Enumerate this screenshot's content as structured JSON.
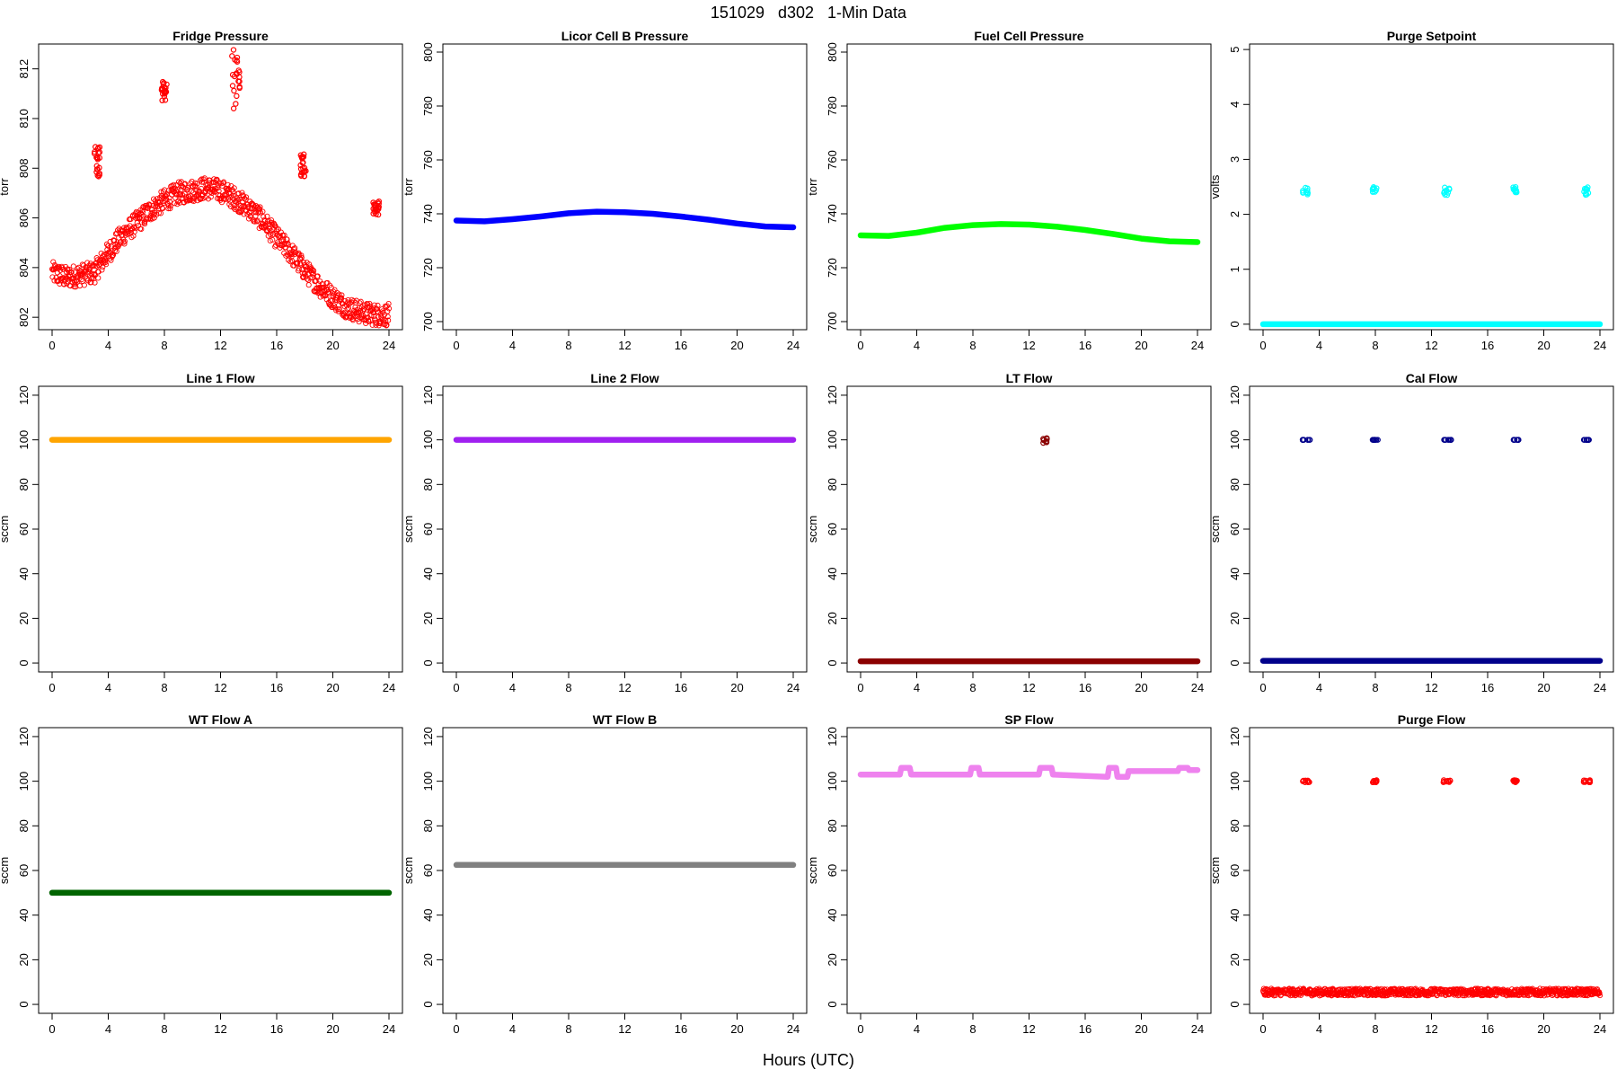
{
  "figure": {
    "title": "151029   d302   1-Min Data",
    "xlabel": "Hours (UTC)"
  },
  "chart_data": [
    {
      "type": "scatter",
      "title": "Fridge Pressure",
      "ylabel": "torr",
      "color": "#ff0000",
      "xlim": [
        0,
        24
      ],
      "ylim": [
        801.5,
        813
      ],
      "xticks": [
        0,
        4,
        8,
        12,
        16,
        20,
        24
      ],
      "yticks": [
        802,
        804,
        806,
        808,
        810,
        812
      ],
      "series": [
        {
          "x": [
            0,
            1,
            2,
            3,
            4,
            5,
            6,
            7,
            8,
            9,
            10,
            11,
            12,
            13,
            14,
            15,
            16,
            17,
            18,
            19,
            20,
            21,
            22,
            23,
            24
          ],
          "y": [
            803.8,
            803.6,
            803.7,
            803.8,
            804.6,
            805.3,
            805.8,
            806.3,
            806.7,
            807.0,
            807.1,
            807.2,
            807.1,
            806.8,
            806.4,
            805.9,
            805.2,
            804.6,
            803.9,
            803.3,
            802.8,
            802.4,
            802.2,
            802.1,
            802.1
          ]
        }
      ],
      "excursions": [
        {
          "x": [
            3.0,
            3.4
          ],
          "y": [
            807.6,
            808.9
          ]
        },
        {
          "x": [
            7.8,
            8.2
          ],
          "y": [
            810.7,
            811.5
          ]
        },
        {
          "x": [
            12.8,
            13.4
          ],
          "y": [
            810.4,
            812.9
          ]
        },
        {
          "x": [
            17.7,
            18.1
          ],
          "y": [
            807.6,
            808.6
          ]
        },
        {
          "x": [
            22.8,
            23.3
          ],
          "y": [
            806.1,
            806.7
          ]
        }
      ]
    },
    {
      "type": "line",
      "title": "Licor Cell B Pressure",
      "ylabel": "torr",
      "color": "#0000ff",
      "xlim": [
        0,
        24
      ],
      "ylim": [
        697,
        803
      ],
      "xticks": [
        0,
        4,
        8,
        12,
        16,
        20,
        24
      ],
      "yticks": [
        700,
        720,
        740,
        760,
        780,
        800
      ],
      "series": [
        {
          "x": [
            0,
            2,
            4,
            6,
            8,
            10,
            12,
            14,
            16,
            18,
            20,
            22,
            24
          ],
          "y": [
            737.5,
            737.2,
            738.0,
            739.0,
            740.2,
            740.8,
            740.6,
            740.0,
            739.0,
            737.8,
            736.4,
            735.3,
            735.0
          ]
        }
      ]
    },
    {
      "type": "line",
      "title": "Fuel Cell Pressure",
      "ylabel": "torr",
      "color": "#00ff00",
      "xlim": [
        0,
        24
      ],
      "ylim": [
        697,
        803
      ],
      "xticks": [
        0,
        4,
        8,
        12,
        16,
        20,
        24
      ],
      "yticks": [
        700,
        720,
        740,
        760,
        780,
        800
      ],
      "series": [
        {
          "x": [
            0,
            2,
            4,
            6,
            8,
            10,
            12,
            14,
            16,
            18,
            20,
            22,
            24
          ],
          "y": [
            732.0,
            731.8,
            733.0,
            734.8,
            735.8,
            736.2,
            736.0,
            735.2,
            734.0,
            732.5,
            730.8,
            729.8,
            729.5
          ]
        }
      ]
    },
    {
      "type": "scatter",
      "title": "Purge Setpoint",
      "ylabel": "volts",
      "color": "#00ffff",
      "xlim": [
        0,
        24
      ],
      "ylim": [
        -0.1,
        5.1
      ],
      "xticks": [
        0,
        4,
        8,
        12,
        16,
        20,
        24
      ],
      "yticks": [
        0,
        1,
        2,
        3,
        4,
        5
      ],
      "series": [
        {
          "x": [
            0,
            24
          ],
          "y": [
            0,
            0
          ]
        }
      ],
      "excursions": [
        {
          "x": [
            2.8,
            3.2
          ],
          "y": [
            2.35,
            2.5
          ]
        },
        {
          "x": [
            7.8,
            8.1
          ],
          "y": [
            2.4,
            2.5
          ]
        },
        {
          "x": [
            12.8,
            13.3
          ],
          "y": [
            2.35,
            2.5
          ]
        },
        {
          "x": [
            17.8,
            18.1
          ],
          "y": [
            2.4,
            2.5
          ]
        },
        {
          "x": [
            22.8,
            23.2
          ],
          "y": [
            2.35,
            2.5
          ]
        }
      ]
    },
    {
      "type": "line",
      "title": "Line 1 Flow",
      "ylabel": "sccm",
      "color": "#ffa500",
      "xlim": [
        0,
        24
      ],
      "ylim": [
        -4,
        124
      ],
      "xticks": [
        0,
        4,
        8,
        12,
        16,
        20,
        24
      ],
      "yticks": [
        0,
        20,
        40,
        60,
        80,
        100,
        120
      ],
      "series": [
        {
          "x": [
            0,
            24
          ],
          "y": [
            100,
            100
          ]
        }
      ]
    },
    {
      "type": "line",
      "title": "Line 2 Flow",
      "ylabel": "sccm",
      "color": "#a020f0",
      "xlim": [
        0,
        24
      ],
      "ylim": [
        -4,
        124
      ],
      "xticks": [
        0,
        4,
        8,
        12,
        16,
        20,
        24
      ],
      "yticks": [
        0,
        20,
        40,
        60,
        80,
        100,
        120
      ],
      "series": [
        {
          "x": [
            0,
            24
          ],
          "y": [
            100,
            100
          ]
        }
      ]
    },
    {
      "type": "scatter",
      "title": "LT Flow",
      "ylabel": "sccm",
      "color": "#8b0000",
      "xlim": [
        0,
        24
      ],
      "ylim": [
        -4,
        124
      ],
      "xticks": [
        0,
        4,
        8,
        12,
        16,
        20,
        24
      ],
      "yticks": [
        0,
        20,
        40,
        60,
        80,
        100,
        120
      ],
      "series": [
        {
          "x": [
            0,
            24
          ],
          "y": [
            0.8,
            0.8
          ]
        }
      ],
      "excursions": [
        {
          "x": [
            13.0,
            13.3
          ],
          "y": [
            98.5,
            101
          ]
        }
      ]
    },
    {
      "type": "scatter",
      "title": "Cal Flow",
      "ylabel": "sccm",
      "color": "#00008b",
      "xlim": [
        0,
        24
      ],
      "ylim": [
        -4,
        124
      ],
      "xticks": [
        0,
        4,
        8,
        12,
        16,
        20,
        24
      ],
      "yticks": [
        0,
        20,
        40,
        60,
        80,
        100,
        120
      ],
      "series": [
        {
          "x": [
            0,
            24
          ],
          "y": [
            1,
            1
          ]
        }
      ],
      "excursions": [
        {
          "x": [
            2.8,
            3.4
          ],
          "y": [
            100,
            100
          ]
        },
        {
          "x": [
            7.8,
            8.2
          ],
          "y": [
            100,
            100
          ]
        },
        {
          "x": [
            12.8,
            13.5
          ],
          "y": [
            100,
            100
          ]
        },
        {
          "x": [
            17.8,
            18.2
          ],
          "y": [
            100,
            100
          ]
        },
        {
          "x": [
            22.8,
            23.4
          ],
          "y": [
            100,
            100
          ]
        }
      ]
    },
    {
      "type": "line",
      "title": "WT Flow A",
      "ylabel": "sccm",
      "color": "#006400",
      "xlim": [
        0,
        24
      ],
      "ylim": [
        -4,
        124
      ],
      "xticks": [
        0,
        4,
        8,
        12,
        16,
        20,
        24
      ],
      "yticks": [
        0,
        20,
        40,
        60,
        80,
        100,
        120
      ],
      "series": [
        {
          "x": [
            0,
            24
          ],
          "y": [
            50,
            50
          ]
        }
      ]
    },
    {
      "type": "line",
      "title": "WT Flow B",
      "ylabel": "sccm",
      "color": "#808080",
      "xlim": [
        0,
        24
      ],
      "ylim": [
        -4,
        124
      ],
      "xticks": [
        0,
        4,
        8,
        12,
        16,
        20,
        24
      ],
      "yticks": [
        0,
        20,
        40,
        60,
        80,
        100,
        120
      ],
      "series": [
        {
          "x": [
            0,
            24
          ],
          "y": [
            62.5,
            62.5
          ]
        }
      ]
    },
    {
      "type": "line",
      "title": "SP Flow",
      "ylabel": "sccm",
      "color": "#ee82ee",
      "xlim": [
        0,
        24
      ],
      "ylim": [
        -4,
        124
      ],
      "xticks": [
        0,
        4,
        8,
        12,
        16,
        20,
        24
      ],
      "yticks": [
        0,
        20,
        40,
        60,
        80,
        100,
        120
      ],
      "series": [
        {
          "x": [
            0,
            2.8,
            2.9,
            3.5,
            3.6,
            7.8,
            7.9,
            8.4,
            8.5,
            12.7,
            12.8,
            13.6,
            13.7,
            17.6,
            17.7,
            18.2,
            18.3,
            19.0,
            19.1,
            22.6,
            22.7,
            23.3,
            23.4,
            24
          ],
          "y": [
            103,
            103,
            106,
            106,
            103,
            103,
            106,
            106,
            103,
            103,
            106,
            106,
            103,
            102,
            106,
            106,
            102,
            102,
            104.5,
            104.5,
            106,
            106,
            105,
            105
          ]
        }
      ]
    },
    {
      "type": "scatter",
      "title": "Purge Flow",
      "ylabel": "sccm",
      "color": "#ff0000",
      "xlim": [
        0,
        24
      ],
      "ylim": [
        -4,
        124
      ],
      "xticks": [
        0,
        4,
        8,
        12,
        16,
        20,
        24
      ],
      "yticks": [
        0,
        20,
        40,
        60,
        80,
        100,
        120
      ],
      "series": [
        {
          "x": [
            0,
            24
          ],
          "y": [
            5.5,
            5.5
          ]
        }
      ],
      "excursions": [
        {
          "x": [
            2.8,
            3.3
          ],
          "y": [
            99.5,
            100.5
          ]
        },
        {
          "x": [
            7.8,
            8.1
          ],
          "y": [
            99.5,
            100.5
          ]
        },
        {
          "x": [
            12.8,
            13.4
          ],
          "y": [
            99.5,
            100.5
          ]
        },
        {
          "x": [
            17.8,
            18.1
          ],
          "y": [
            99.5,
            100.5
          ]
        },
        {
          "x": [
            22.8,
            23.3
          ],
          "y": [
            99.5,
            100.5
          ]
        }
      ]
    }
  ]
}
